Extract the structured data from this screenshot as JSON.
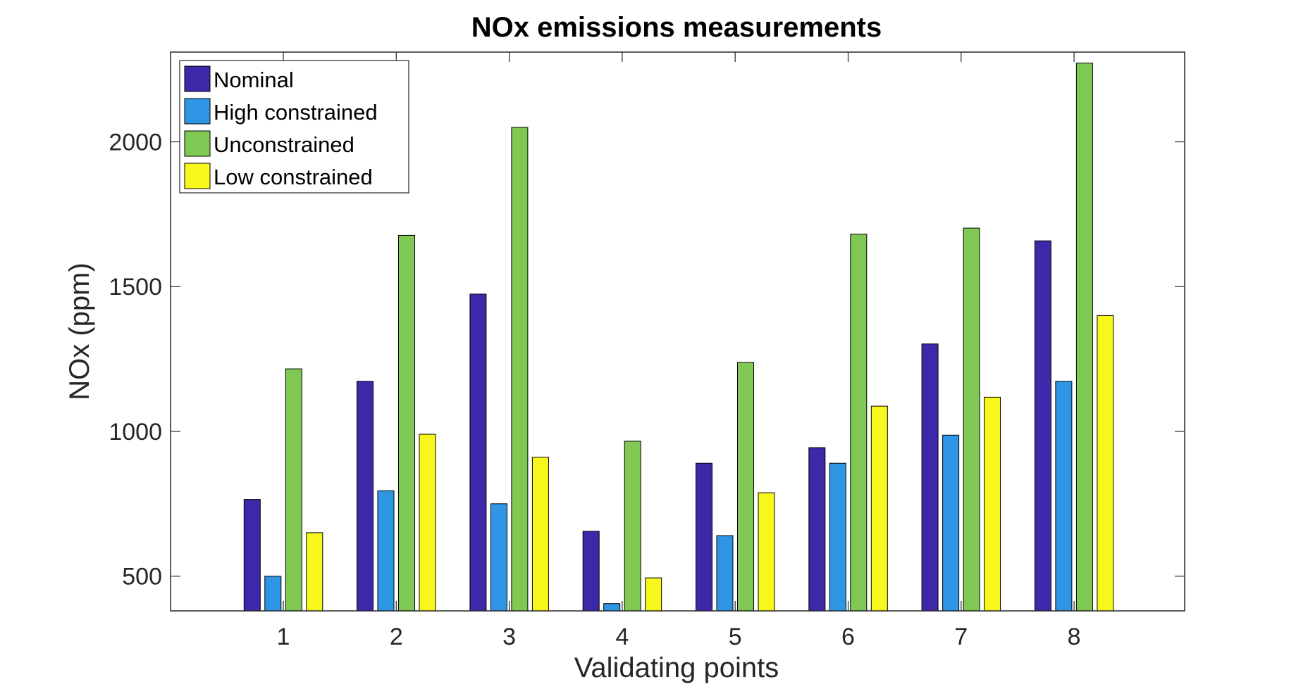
{
  "chart_data": {
    "type": "bar",
    "title": "NOx emissions measurements",
    "xlabel": "Validating points",
    "ylabel": "NOx (ppm)",
    "categories": [
      "1",
      "2",
      "3",
      "4",
      "5",
      "6",
      "7",
      "8"
    ],
    "ylim": [
      380,
      2310
    ],
    "yticks": [
      500,
      1000,
      1500,
      2000
    ],
    "grid": false,
    "legend_position": "top-left",
    "series": [
      {
        "name": "Nominal",
        "color": "#3c28a8",
        "values": [
          765,
          1173,
          1474,
          655,
          890,
          944,
          1302,
          1658
        ]
      },
      {
        "name": "High constrained",
        "color": "#2f96e6",
        "values": [
          500,
          795,
          750,
          405,
          640,
          890,
          987,
          1173
        ]
      },
      {
        "name": "Unconstrained",
        "color": "#7ec853",
        "values": [
          1216,
          1677,
          2050,
          966,
          1238,
          1681,
          1702,
          2272
        ]
      },
      {
        "name": "Low constrained",
        "color": "#f7f71c",
        "values": [
          650,
          990,
          911,
          494,
          788,
          1087,
          1118,
          1400
        ]
      }
    ]
  }
}
